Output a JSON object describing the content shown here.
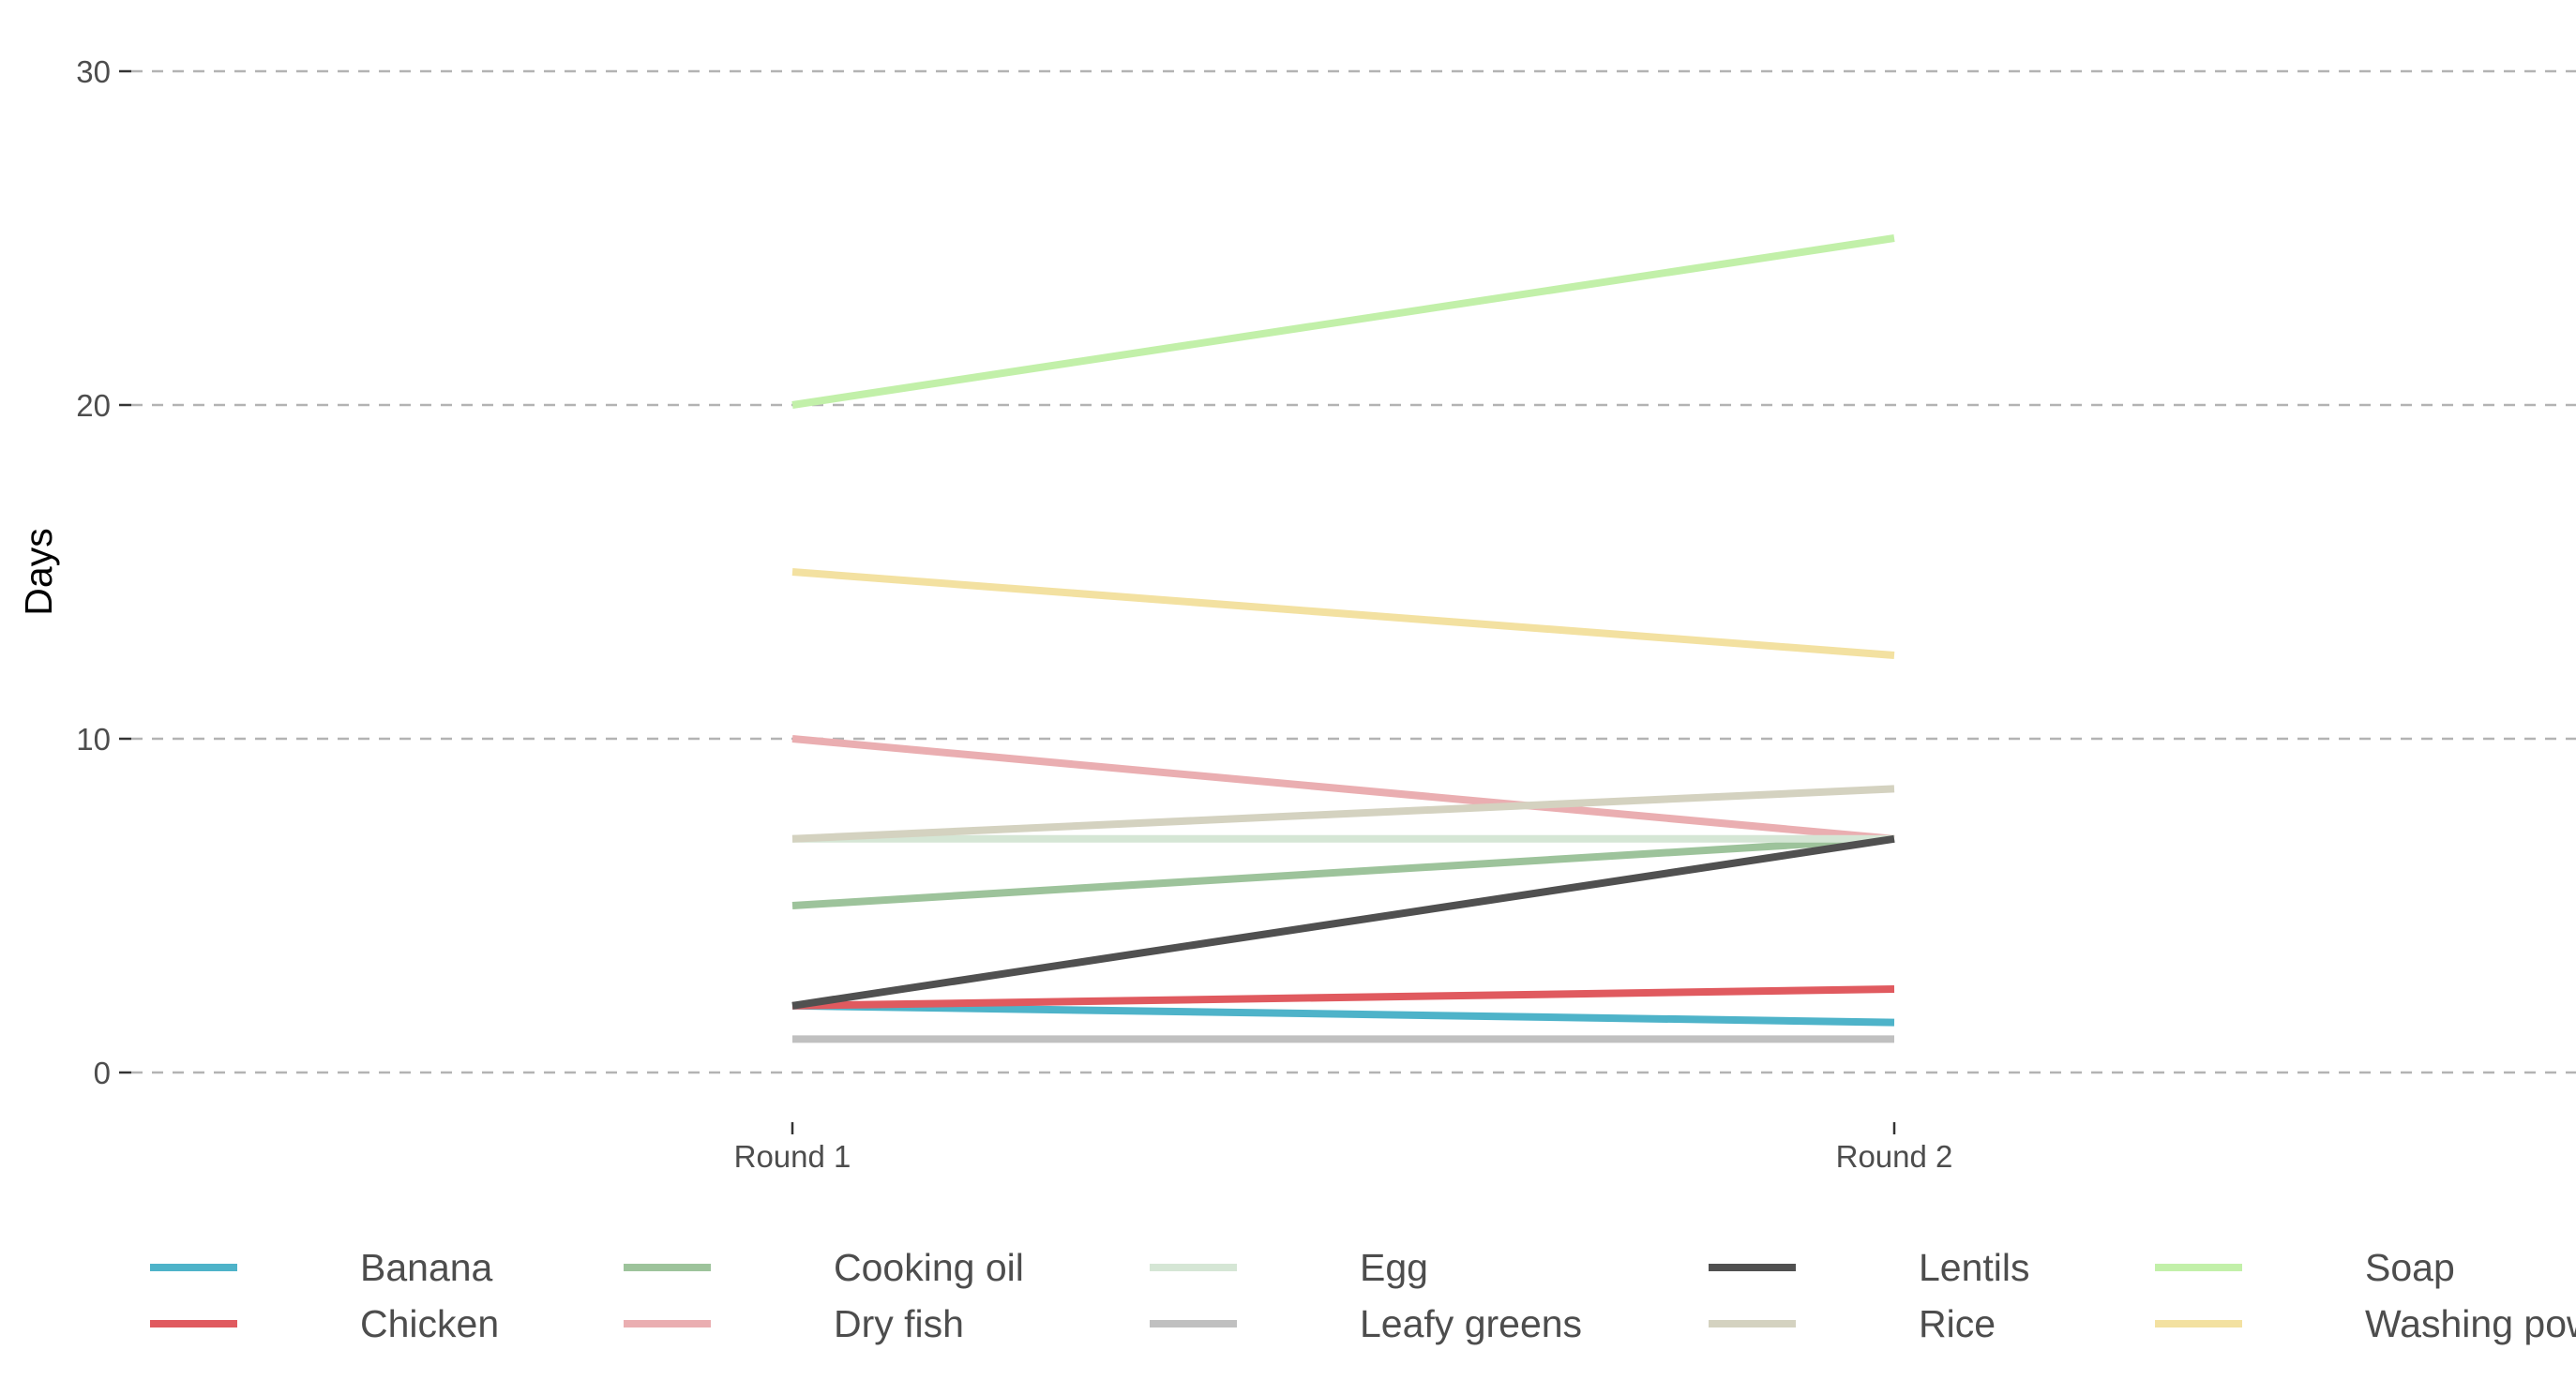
{
  "chart_data": {
    "type": "line",
    "title": "",
    "xlabel": "",
    "ylabel": "Days",
    "categories": [
      "Round 1",
      "Round 2"
    ],
    "ylim": [
      -1.5,
      32
    ],
    "yticks": [
      0,
      10,
      20,
      30
    ],
    "grid": "horizontal dashed",
    "legend_position": "bottom",
    "series": [
      {
        "name": "Banana",
        "color": "#4eb3c9",
        "values": [
          2,
          1.5
        ]
      },
      {
        "name": "Chicken",
        "color": "#e05a5f",
        "values": [
          2,
          2.5
        ]
      },
      {
        "name": "Cooking oil",
        "color": "#9dc39b",
        "values": [
          5,
          7
        ]
      },
      {
        "name": "Dry fish",
        "color": "#eaaeb1",
        "values": [
          10,
          7
        ]
      },
      {
        "name": "Egg",
        "color": "#d5e6d5",
        "values": [
          7,
          7
        ]
      },
      {
        "name": "Leafy greens",
        "color": "#c0c0c0",
        "values": [
          1,
          1
        ]
      },
      {
        "name": "Lentils",
        "color": "#505050",
        "values": [
          2,
          7
        ]
      },
      {
        "name": "Rice",
        "color": "#d4d2c0",
        "values": [
          7,
          8.5
        ]
      },
      {
        "name": "Soap",
        "color": "#c2f0a9",
        "values": [
          20,
          25
        ]
      },
      {
        "name": "Washing powder",
        "color": "#f3e1a1",
        "values": [
          15,
          12.5
        ]
      }
    ]
  }
}
